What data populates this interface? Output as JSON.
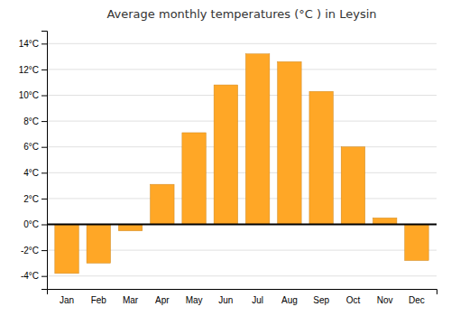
{
  "chart_data": {
    "type": "bar",
    "title": "Average monthly temperatures (°C ) in Leysin",
    "categories": [
      "Jan",
      "Feb",
      "Mar",
      "Apr",
      "May",
      "Jun",
      "Jul",
      "Aug",
      "Sep",
      "Oct",
      "Nov",
      "Dec"
    ],
    "values": [
      -3.8,
      -3.0,
      -0.5,
      3.1,
      7.1,
      10.8,
      13.2,
      12.6,
      10.3,
      6.0,
      0.5,
      -2.8
    ],
    "color": "#FFA726",
    "ylim": [
      -5,
      15
    ],
    "yticks": [
      {
        "value": -4,
        "label": "-4°C"
      },
      {
        "value": -2,
        "label": "-2°C"
      },
      {
        "value": 0,
        "label": "0°C"
      },
      {
        "value": 2,
        "label": "2°C"
      },
      {
        "value": 4,
        "label": "4°C"
      },
      {
        "value": 6,
        "label": "6°C"
      },
      {
        "value": 8,
        "label": "8°C"
      },
      {
        "value": 10,
        "label": "10°C"
      },
      {
        "value": 12,
        "label": "12°C"
      },
      {
        "value": 14,
        "label": "14°C"
      }
    ],
    "grid": true
  }
}
